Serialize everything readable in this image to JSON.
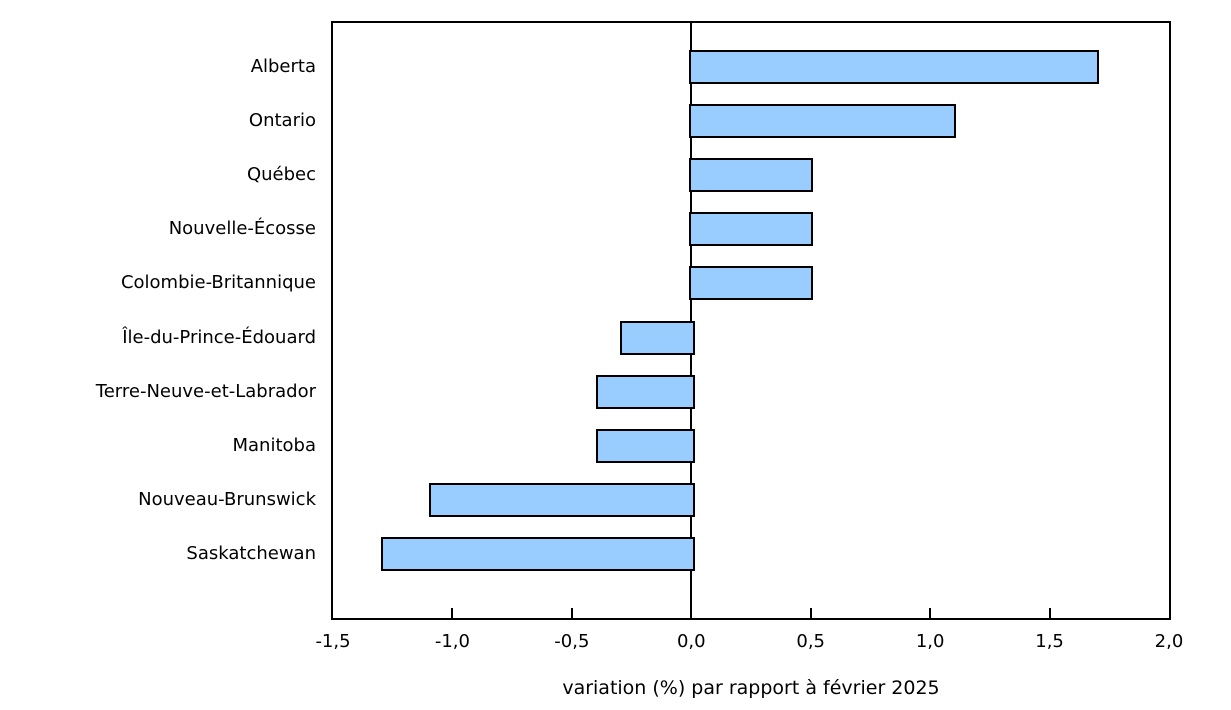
{
  "chart_data": {
    "type": "bar",
    "orientation": "horizontal",
    "title": "",
    "xlabel": "variation (%) par rapport à février 2025",
    "ylabel": "",
    "xlim": [
      -1.5,
      2.0
    ],
    "grid": false,
    "legend": "none",
    "categories": [
      "Alberta",
      "Ontario",
      "Québec",
      "Nouvelle-Écosse",
      "Colombie-Britannique",
      "Île-du-Prince-Édouard",
      "Terre-Neuve-et-Labrador",
      "Manitoba",
      "Nouveau-Brunswick",
      "Saskatchewan"
    ],
    "values": [
      1.7,
      1.1,
      0.5,
      0.5,
      0.5,
      -0.3,
      -0.4,
      -0.4,
      -1.1,
      -1.3
    ],
    "x_ticks": [
      {
        "label": "-1,5",
        "value": -1.5
      },
      {
        "label": "-1,0",
        "value": -1.0
      },
      {
        "label": "-0,5",
        "value": -0.5
      },
      {
        "label": "0,0",
        "value": 0.0
      },
      {
        "label": "0,5",
        "value": 0.5
      },
      {
        "label": "1,0",
        "value": 1.0
      },
      {
        "label": "1,5",
        "value": 1.5
      },
      {
        "label": "2,0",
        "value": 2.0
      }
    ],
    "colors": {
      "bar_fill": "#99CCFF",
      "bar_border": "#000000",
      "axis": "#000000",
      "text": "#000000",
      "background": "#FFFFFF"
    }
  }
}
